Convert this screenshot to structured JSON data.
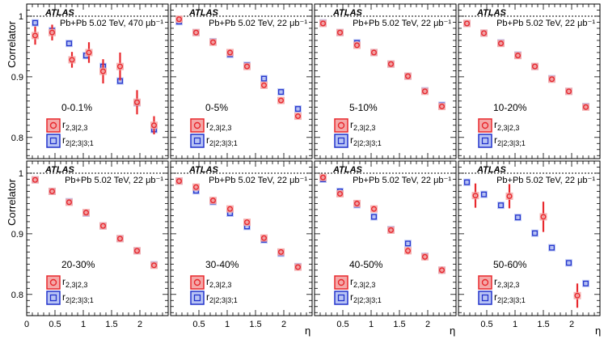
{
  "figure": {
    "ylabel": "Correlator",
    "xlabel": "η",
    "colors": {
      "red": "#e8282d",
      "red_fill": "#f4a8a8",
      "blue": "#2233cc",
      "blue_fill": "#b8c4f4",
      "ref_line": "#000000"
    },
    "legend": {
      "series1": "r2,3|2,3",
      "series2": "r2|2;3|3;1"
    }
  },
  "chart_data": [
    {
      "type": "scatter",
      "experiment": "ATLAS",
      "system": "Pb+Pb 5.02 TeV, 470 μb⁻¹",
      "centrality": "0-0.1%",
      "xlabel": "η",
      "ylabel": "Correlator",
      "xlim": [
        0,
        2.5
      ],
      "ylim": [
        0.765,
        1.02
      ],
      "reference_line": 1.0,
      "x_ticks": [],
      "y_ticks": [
        "0.8",
        "0.9",
        "1"
      ],
      "series": [
        {
          "name": "r2,3|2,3",
          "x": [
            0.15,
            0.45,
            0.8,
            1.1,
            1.35,
            1.65,
            1.95,
            2.25
          ],
          "y": [
            0.968,
            0.973,
            0.928,
            0.94,
            0.909,
            0.917,
            0.858,
            0.82
          ],
          "err": [
            0.015,
            0.013,
            0.013,
            0.017,
            0.02,
            0.023,
            0.02,
            0.015
          ]
        },
        {
          "name": "r2|2;3|3;1",
          "x": [
            0.15,
            0.45,
            0.75,
            1.05,
            1.35,
            1.65,
            1.95,
            2.25
          ],
          "y": [
            0.989,
            0.976,
            0.955,
            0.935,
            0.917,
            0.893,
            0.857,
            0.813
          ],
          "err": [
            0.002,
            0.003,
            0.003,
            0.003,
            0.004,
            0.004,
            0.005,
            0.006
          ]
        }
      ]
    },
    {
      "type": "scatter",
      "experiment": "ATLAS",
      "system": "Pb+Pb 5.02 TeV, 22 μb⁻¹",
      "centrality": "0-5%",
      "xlabel": "η",
      "ylabel": "Correlator",
      "xlim": [
        0,
        2.5
      ],
      "ylim": [
        0.765,
        1.02
      ],
      "reference_line": 1.0,
      "x_ticks": [],
      "y_ticks": [],
      "series": [
        {
          "name": "r2,3|2,3",
          "x": [
            0.15,
            0.45,
            0.75,
            1.05,
            1.35,
            1.65,
            1.95,
            2.25
          ],
          "y": [
            0.995,
            0.973,
            0.957,
            0.94,
            0.917,
            0.886,
            0.861,
            0.835
          ],
          "err": [
            0.002,
            0.002,
            0.003,
            0.003,
            0.003,
            0.004,
            0.004,
            0.004
          ]
        },
        {
          "name": "r2|2;3|3;1",
          "x": [
            0.15,
            0.45,
            0.75,
            1.05,
            1.35,
            1.65,
            1.95,
            2.25
          ],
          "y": [
            0.991,
            0.973,
            0.958,
            0.937,
            0.919,
            0.897,
            0.875,
            0.847
          ],
          "err": [
            0.001,
            0.001,
            0.002,
            0.002,
            0.002,
            0.002,
            0.002,
            0.002
          ]
        }
      ]
    },
    {
      "type": "scatter",
      "experiment": "ATLAS",
      "system": "Pb+Pb 5.02 TeV, 22 μb⁻¹",
      "centrality": "5-10%",
      "xlabel": "η",
      "ylabel": "Correlator",
      "xlim": [
        0,
        2.5
      ],
      "ylim": [
        0.765,
        1.02
      ],
      "reference_line": 1.0,
      "x_ticks": [],
      "y_ticks": [],
      "series": [
        {
          "name": "r2,3|2,3",
          "x": [
            0.15,
            0.45,
            0.75,
            1.05,
            1.35,
            1.65,
            1.95,
            2.25
          ],
          "y": [
            0.988,
            0.973,
            0.952,
            0.94,
            0.921,
            0.901,
            0.876,
            0.851
          ],
          "err": [
            0.002,
            0.002,
            0.002,
            0.002,
            0.003,
            0.003,
            0.003,
            0.003
          ]
        },
        {
          "name": "r2|2;3|3;1",
          "x": [
            0.15,
            0.45,
            0.75,
            1.05,
            1.35,
            1.65,
            1.95,
            2.25
          ],
          "y": [
            0.989,
            0.973,
            0.956,
            0.94,
            0.921,
            0.901,
            0.877,
            0.853
          ],
          "err": [
            0.001,
            0.001,
            0.001,
            0.001,
            0.001,
            0.001,
            0.001,
            0.001
          ]
        }
      ]
    },
    {
      "type": "scatter",
      "experiment": "ATLAS",
      "system": "Pb+Pb 5.02 TeV, 22 μb⁻¹",
      "centrality": "10-20%",
      "xlabel": "η",
      "ylabel": "Correlator",
      "xlim": [
        0,
        2.5
      ],
      "ylim": [
        0.765,
        1.02
      ],
      "reference_line": 1.0,
      "x_ticks": [],
      "y_ticks": [],
      "series": [
        {
          "name": "r2,3|2,3",
          "x": [
            0.15,
            0.45,
            0.75,
            1.05,
            1.35,
            1.65,
            1.95,
            2.25
          ],
          "y": [
            0.988,
            0.972,
            0.955,
            0.935,
            0.917,
            0.896,
            0.876,
            0.85
          ],
          "err": [
            0.001,
            0.001,
            0.002,
            0.002,
            0.002,
            0.002,
            0.002,
            0.002
          ]
        },
        {
          "name": "r2|2;3|3;1",
          "x": [
            0.15,
            0.45,
            0.75,
            1.05,
            1.35,
            1.65,
            1.95,
            2.25
          ],
          "y": [
            0.988,
            0.972,
            0.956,
            0.936,
            0.917,
            0.897,
            0.876,
            0.851
          ],
          "err": [
            0.001,
            0.001,
            0.001,
            0.001,
            0.001,
            0.001,
            0.001,
            0.001
          ]
        }
      ]
    },
    {
      "type": "scatter",
      "experiment": "ATLAS",
      "system": "Pb+Pb 5.02 TeV, 22 μb⁻¹",
      "centrality": "20-30%",
      "xlabel": "η",
      "ylabel": "Correlator",
      "xlim": [
        0,
        2.5
      ],
      "ylim": [
        0.765,
        1.02
      ],
      "reference_line": 1.0,
      "x_ticks": [
        "0",
        "0.5",
        "1",
        "1.5",
        "2"
      ],
      "y_ticks": [
        "0.8",
        "0.9",
        "1"
      ],
      "series": [
        {
          "name": "r2,3|2,3",
          "x": [
            0.15,
            0.45,
            0.75,
            1.05,
            1.35,
            1.65,
            1.95,
            2.25
          ],
          "y": [
            0.989,
            0.97,
            0.952,
            0.935,
            0.913,
            0.892,
            0.872,
            0.848
          ],
          "err": [
            0.001,
            0.001,
            0.002,
            0.002,
            0.002,
            0.002,
            0.002,
            0.002
          ]
        },
        {
          "name": "r2|2;3|3;1",
          "x": [
            0.15,
            0.45,
            0.75,
            1.05,
            1.35,
            1.65,
            1.95,
            2.25
          ],
          "y": [
            0.989,
            0.97,
            0.953,
            0.934,
            0.913,
            0.892,
            0.872,
            0.849
          ],
          "err": [
            0.001,
            0.001,
            0.001,
            0.001,
            0.001,
            0.001,
            0.001,
            0.001
          ]
        }
      ]
    },
    {
      "type": "scatter",
      "experiment": "ATLAS",
      "system": "Pb+Pb 5.02 TeV, 22 μb⁻¹",
      "centrality": "30-40%",
      "xlabel": "η",
      "ylabel": "Correlator",
      "xlim": [
        0,
        2.5
      ],
      "ylim": [
        0.765,
        1.02
      ],
      "reference_line": 1.0,
      "x_ticks": [
        "0.5",
        "1",
        "1.5",
        "2"
      ],
      "y_ticks": [],
      "series": [
        {
          "name": "r2,3|2,3",
          "x": [
            0.15,
            0.45,
            0.75,
            1.05,
            1.35,
            1.65,
            1.95,
            2.25
          ],
          "y": [
            0.987,
            0.977,
            0.955,
            0.941,
            0.919,
            0.893,
            0.87,
            0.845
          ],
          "err": [
            0.002,
            0.002,
            0.002,
            0.002,
            0.002,
            0.003,
            0.003,
            0.003
          ]
        },
        {
          "name": "r2|2;3|3;1",
          "x": [
            0.15,
            0.45,
            0.75,
            1.05,
            1.35,
            1.65,
            1.95,
            2.25
          ],
          "y": [
            0.987,
            0.971,
            0.953,
            0.934,
            0.912,
            0.89,
            0.868,
            0.846
          ],
          "err": [
            0.001,
            0.001,
            0.001,
            0.001,
            0.001,
            0.001,
            0.001,
            0.001
          ]
        }
      ]
    },
    {
      "type": "scatter",
      "experiment": "ATLAS",
      "system": "Pb+Pb 5.02 TeV, 22 μb⁻¹",
      "centrality": "40-50%",
      "xlabel": "η",
      "ylabel": "Correlator",
      "xlim": [
        0,
        2.5
      ],
      "ylim": [
        0.765,
        1.02
      ],
      "reference_line": 1.0,
      "x_ticks": [
        "0.5",
        "1",
        "1.5",
        "2"
      ],
      "y_ticks": [],
      "series": [
        {
          "name": "r2,3|2,3",
          "x": [
            0.15,
            0.45,
            0.75,
            1.05,
            1.35,
            1.65,
            1.95,
            2.25
          ],
          "y": [
            0.993,
            0.966,
            0.95,
            0.941,
            0.906,
            0.872,
            0.862,
            0.84
          ],
          "err": [
            0.003,
            0.004,
            0.004,
            0.005,
            0.005,
            0.006,
            0.006,
            0.006
          ]
        },
        {
          "name": "r2|2;3|3;1",
          "x": [
            0.15,
            0.45,
            0.75,
            1.05,
            1.35,
            1.65,
            1.95,
            2.25
          ],
          "y": [
            0.99,
            0.97,
            0.948,
            0.928,
            0.907,
            0.884,
            0.863,
            0.84
          ],
          "err": [
            0.001,
            0.001,
            0.001,
            0.001,
            0.002,
            0.002,
            0.002,
            0.002
          ]
        }
      ]
    },
    {
      "type": "scatter",
      "experiment": "ATLAS",
      "system": "Pb+Pb 5.02 TeV, 22 μb⁻¹",
      "centrality": "50-60%",
      "xlabel": "η",
      "ylabel": "Correlator",
      "xlim": [
        0,
        2.5
      ],
      "ylim": [
        0.765,
        1.02
      ],
      "reference_line": 1.0,
      "x_ticks": [
        "0.5",
        "1",
        "1.5",
        "2"
      ],
      "y_ticks": [],
      "series": [
        {
          "name": "r2,3|2,3",
          "x": [
            0.3,
            0.9,
            1.5,
            2.1
          ],
          "y": [
            0.963,
            0.962,
            0.928,
            0.798
          ],
          "err": [
            0.02,
            0.02,
            0.025,
            0.02
          ]
        },
        {
          "name": "r2|2;3|3;1",
          "x": [
            0.15,
            0.45,
            0.75,
            1.05,
            1.35,
            1.65,
            1.95,
            2.25
          ],
          "y": [
            0.985,
            0.965,
            0.947,
            0.927,
            0.901,
            0.877,
            0.852,
            0.818
          ],
          "err": [
            0.002,
            0.002,
            0.002,
            0.002,
            0.002,
            0.002,
            0.002,
            0.002
          ]
        }
      ]
    }
  ]
}
